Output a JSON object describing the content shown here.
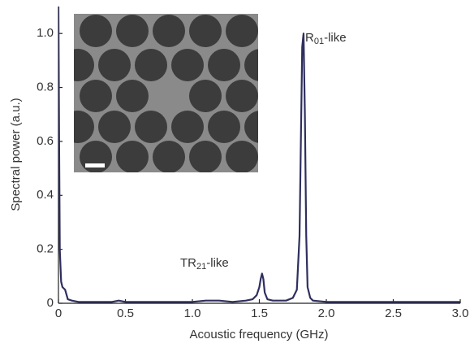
{
  "chart_data": {
    "type": "line",
    "x_label": "Acoustic frequency (GHz)",
    "y_label": "Spectral power (a.u.)",
    "xlim": [
      0,
      3
    ],
    "ylim": [
      0,
      1.1
    ],
    "xticks": [
      0,
      0.5,
      {
        "value": 1,
        "label": "1.0"
      },
      1.5,
      {
        "value": 2,
        "label": "2.0"
      },
      2.5,
      {
        "value": 3,
        "label": "3.0"
      }
    ],
    "yticks": [
      0,
      0.2,
      0.4,
      0.6,
      0.8,
      {
        "value": 1,
        "label": "1.0"
      }
    ],
    "color": "#2e2f5e",
    "x": [
      0,
      0.005,
      0.01,
      0.02,
      0.03,
      0.05,
      0.07,
      0.1,
      0.15,
      0.2,
      0.3,
      0.4,
      0.45,
      0.5,
      0.6,
      0.7,
      0.8,
      0.9,
      1.0,
      1.1,
      1.2,
      1.3,
      1.4,
      1.45,
      1.48,
      1.5,
      1.51,
      1.52,
      1.53,
      1.54,
      1.56,
      1.6,
      1.7,
      1.75,
      1.78,
      1.8,
      1.81,
      1.82,
      1.83,
      1.84,
      1.85,
      1.86,
      1.88,
      1.9,
      2.0,
      2.1,
      2.2,
      2.3,
      2.4,
      2.5,
      2.6,
      2.7,
      2.8,
      2.9,
      3.0
    ],
    "values": [
      1.1,
      0.6,
      0.2,
      0.08,
      0.06,
      0.05,
      0.015,
      0.01,
      0.005,
      0.005,
      0.005,
      0.005,
      0.01,
      0.005,
      0.005,
      0.005,
      0.005,
      0.005,
      0.005,
      0.01,
      0.01,
      0.005,
      0.01,
      0.015,
      0.03,
      0.06,
      0.09,
      0.11,
      0.09,
      0.04,
      0.015,
      0.01,
      0.01,
      0.02,
      0.05,
      0.25,
      0.6,
      0.95,
      1.0,
      0.7,
      0.25,
      0.06,
      0.02,
      0.01,
      0.005,
      0.005,
      0.005,
      0.005,
      0.005,
      0.005,
      0.005,
      0.005,
      0.005,
      0.005,
      0.005
    ],
    "annotations": [
      {
        "base": "R",
        "subscript": "01",
        "suffix": "-like"
      },
      {
        "base": "TR",
        "subscript": "21",
        "suffix": "-like"
      }
    ]
  }
}
